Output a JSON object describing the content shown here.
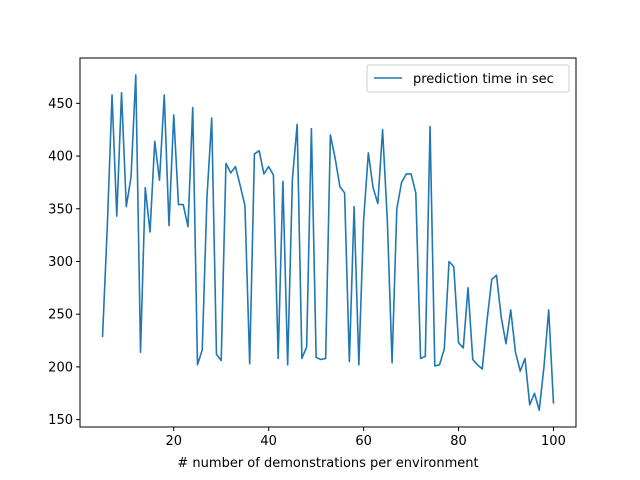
{
  "chart_data": {
    "type": "line",
    "title": "",
    "xlabel": "# number of demonstrations per environment",
    "ylabel": "",
    "xlim": [
      0.25,
      104.75
    ],
    "ylim": [
      143,
      493
    ],
    "xticks": [
      20,
      40,
      60,
      80,
      100
    ],
    "yticks": [
      150,
      200,
      250,
      300,
      350,
      400,
      450
    ],
    "grid": false,
    "legend_position": "top-right",
    "series_color": "#1f77b4",
    "series": [
      {
        "name": "prediction time in sec",
        "x": [
          5,
          6,
          7,
          8,
          9,
          10,
          11,
          12,
          13,
          14,
          15,
          16,
          17,
          18,
          19,
          20,
          21,
          22,
          23,
          24,
          25,
          26,
          27,
          28,
          29,
          30,
          31,
          32,
          33,
          34,
          35,
          36,
          37,
          38,
          39,
          40,
          41,
          42,
          43,
          44,
          45,
          46,
          47,
          48,
          49,
          50,
          51,
          52,
          53,
          54,
          55,
          56,
          57,
          58,
          59,
          60,
          61,
          62,
          63,
          64,
          65,
          66,
          67,
          68,
          69,
          70,
          71,
          72,
          73,
          74,
          75,
          76,
          77,
          78,
          79,
          80,
          81,
          82,
          83,
          84,
          85,
          86,
          87,
          88,
          89,
          90,
          91,
          92,
          93,
          94,
          95,
          96,
          97,
          98,
          99,
          100
        ],
        "y": [
          229,
          333,
          458,
          343,
          460,
          352,
          380,
          477,
          214,
          370,
          328,
          414,
          377,
          458,
          334,
          439,
          354,
          354,
          333,
          446,
          202,
          216,
          361,
          436,
          212,
          206,
          393,
          384,
          390,
          372,
          353,
          203,
          402,
          405,
          383,
          390,
          382,
          208,
          376,
          202,
          378,
          430,
          208,
          219,
          426,
          209,
          207,
          208,
          420,
          398,
          371,
          365,
          205,
          352,
          202,
          339,
          403,
          370,
          355,
          425,
          339,
          204,
          350,
          375,
          383,
          383,
          365,
          208,
          210,
          428,
          201,
          202,
          217,
          300,
          295,
          223,
          218,
          275,
          207,
          202,
          198,
          244,
          283,
          287,
          247,
          222,
          254,
          214,
          196,
          208,
          164,
          175,
          159,
          200,
          254,
          166
        ]
      }
    ]
  }
}
